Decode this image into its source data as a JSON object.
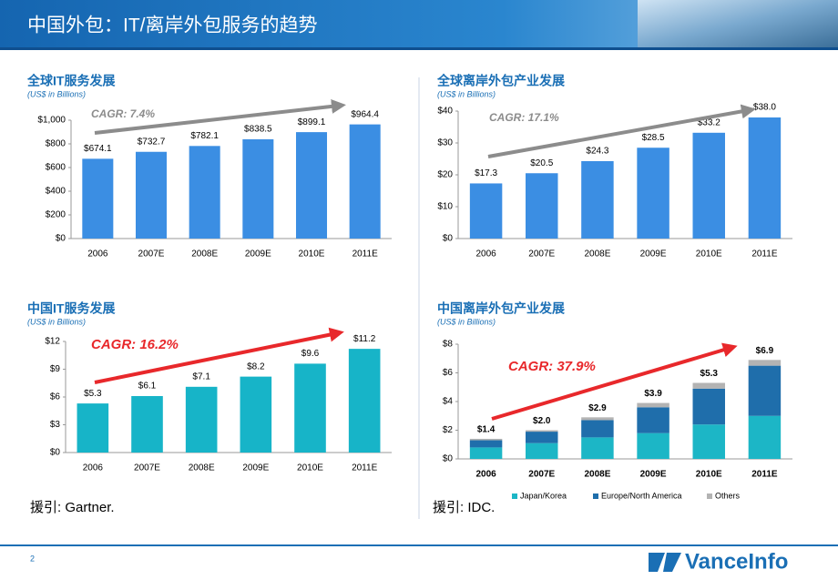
{
  "title": "中国外包：IT/离岸外包服务的趋势",
  "page_number": "2",
  "logo": "VanceInfo",
  "sources": [
    "援引: Gartner.",
    "援引: IDC."
  ],
  "chart_data": [
    {
      "type": "bar",
      "title": "全球IT服务发展",
      "subtitle": "(US$ in Billions)",
      "annotation": "CAGR: 7.4%",
      "annotation_color": "#8c8c8c",
      "categories": [
        "2006",
        "2007E",
        "2008E",
        "2009E",
        "2010E",
        "2011E"
      ],
      "values": [
        674.1,
        732.7,
        782.1,
        838.5,
        899.1,
        964.4
      ],
      "value_labels": [
        "$674.1",
        "$732.7",
        "$782.1",
        "$838.5",
        "$899.1",
        "$964.4"
      ],
      "color": "#3b8ee3",
      "ylim": [
        0,
        1000
      ],
      "yticks": [
        {
          "value": 0,
          "label": "$0"
        },
        {
          "value": 200,
          "label": "$200"
        },
        {
          "value": 400,
          "label": "$400"
        },
        {
          "value": 600,
          "label": "$600"
        },
        {
          "value": 800,
          "label": "$800"
        },
        {
          "value": 1000,
          "label": "$1,000"
        }
      ],
      "grid": false
    },
    {
      "type": "bar",
      "title": "全球离岸外包产业发展",
      "subtitle": "(US$ in Billions)",
      "annotation": "CAGR: 17.1%",
      "annotation_color": "#8c8c8c",
      "categories": [
        "2006",
        "2007E",
        "2008E",
        "2009E",
        "2010E",
        "2011E"
      ],
      "values": [
        17.3,
        20.5,
        24.3,
        28.5,
        33.2,
        38.0
      ],
      "value_labels": [
        "$17.3",
        "$20.5",
        "$24.3",
        "$28.5",
        "$33.2",
        "$38.0"
      ],
      "color": "#3b8ee3",
      "ylim": [
        0,
        40
      ],
      "yticks": [
        {
          "value": 0,
          "label": "$0"
        },
        {
          "value": 10,
          "label": "$10"
        },
        {
          "value": 20,
          "label": "$20"
        },
        {
          "value": 30,
          "label": "$30"
        },
        {
          "value": 40,
          "label": "$40"
        }
      ],
      "grid": false
    },
    {
      "type": "bar",
      "title": "中国IT服务发展",
      "subtitle": "(US$ in Billions)",
      "annotation": "CAGR: 16.2%",
      "annotation_color": "#e8282b",
      "categories": [
        "2006",
        "2007E",
        "2008E",
        "2009E",
        "2010E",
        "2011E"
      ],
      "values": [
        5.3,
        6.1,
        7.1,
        8.2,
        9.6,
        11.2
      ],
      "value_labels": [
        "$5.3",
        "$6.1",
        "$7.1",
        "$8.2",
        "$9.6",
        "$11.2"
      ],
      "color": "#17b4c8",
      "ylim": [
        0,
        12
      ],
      "yticks": [
        {
          "value": 0,
          "label": "$0"
        },
        {
          "value": 3,
          "label": "$3"
        },
        {
          "value": 6,
          "label": "$6"
        },
        {
          "value": 9,
          "label": "$9"
        },
        {
          "value": 12,
          "label": "$12"
        }
      ],
      "grid": false
    },
    {
      "type": "stacked_bar",
      "title": "中国离岸外包产业发展",
      "subtitle": "(US$ in Billions)",
      "annotation": "CAGR: 37.9%",
      "annotation_color": "#e8282b",
      "categories": [
        "2006",
        "2007E",
        "2008E",
        "2009E",
        "2010E",
        "2011E"
      ],
      "series": [
        {
          "name": "Japan/Korea",
          "color": "#1cb6c6",
          "values": [
            0.8,
            1.1,
            1.5,
            1.8,
            2.4,
            3.0
          ]
        },
        {
          "name": "Europe/North America",
          "color": "#1f6eab",
          "values": [
            0.5,
            0.8,
            1.2,
            1.8,
            2.5,
            3.5
          ]
        },
        {
          "name": "Others",
          "color": "#b3b3b3",
          "values": [
            0.1,
            0.1,
            0.2,
            0.3,
            0.4,
            0.4
          ]
        }
      ],
      "totals": [
        1.4,
        2.0,
        2.9,
        3.9,
        5.3,
        6.9
      ],
      "total_labels": [
        "$1.4",
        "$2.0",
        "$2.9",
        "$3.9",
        "$5.3",
        "$6.9"
      ],
      "ylim": [
        0,
        8
      ],
      "yticks": [
        {
          "value": 0,
          "label": "$0"
        },
        {
          "value": 2,
          "label": "$2"
        },
        {
          "value": 4,
          "label": "$4"
        },
        {
          "value": 6,
          "label": "$6"
        },
        {
          "value": 8,
          "label": "$8"
        }
      ],
      "grid": false
    }
  ]
}
